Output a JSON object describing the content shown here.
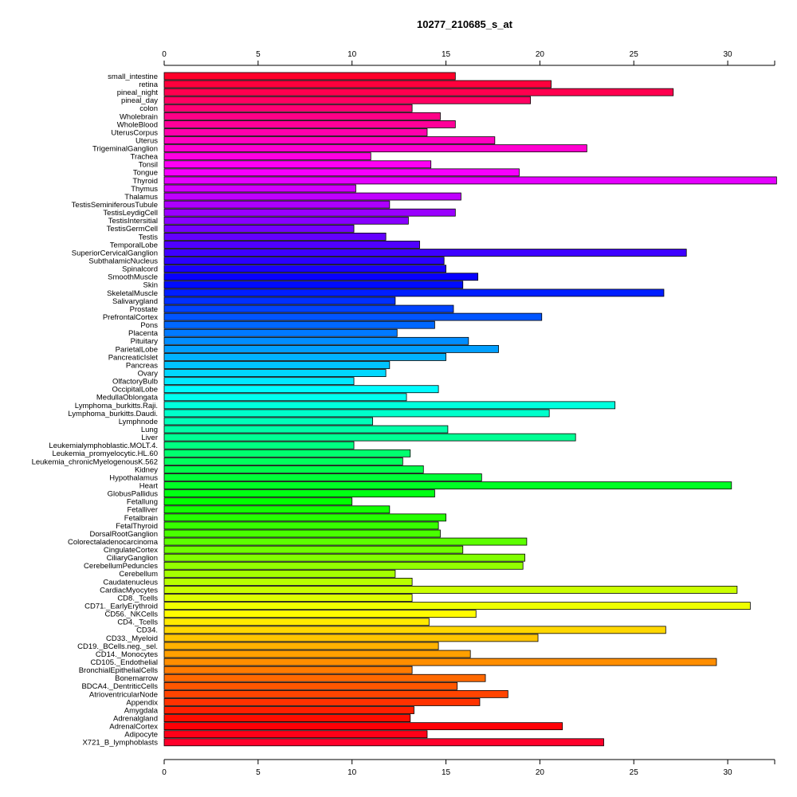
{
  "chart_data": {
    "type": "bar",
    "orientation": "horizontal",
    "title": "10277_210685_s_at",
    "xlim": [
      0,
      32.5
    ],
    "xticks": [
      0,
      5,
      10,
      15,
      20,
      25,
      30
    ],
    "grid": false,
    "categories": [
      "small_intestine",
      "retina",
      "pineal_night",
      "pineal_day",
      "colon",
      "Wholebrain",
      "WholeBlood",
      "UterusCorpus",
      "Uterus",
      "TrigeminalGanglion",
      "Trachea",
      "Tonsil",
      "Tongue",
      "Thyroid",
      "Thymus",
      "Thalamus",
      "TestisSeminiferousTubule",
      "TestisLeydigCell",
      "TestisIntersitial",
      "TestisGermCell",
      "Testis",
      "TemporalLobe",
      "SuperiorCervicalGanglion",
      "SubthalamicNucleus",
      "Spinalcord",
      "SmoothMuscle",
      "Skin",
      "SkeletalMuscle",
      "Salivarygland",
      "Prostate",
      "PrefrontalCortex",
      "Pons",
      "Placenta",
      "Pituitary",
      "ParietalLobe",
      "PancreaticIslet",
      "Pancreas",
      "Ovary",
      "OlfactoryBulb",
      "OccipitalLobe",
      "MedullaOblongata",
      "Lymphoma_burkitts.Raji.",
      "Lymphoma_burkitts.Daudi.",
      "Lymphnode",
      "Lung",
      "Liver",
      "Leukemialymphoblastic.MOLT.4.",
      "Leukemia_promyelocytic.HL.60",
      "Leukemia_chronicMyelogenousK.562",
      "Kidney",
      "Hypothalamus",
      "Heart",
      "GlobusPallidus",
      "Fetallung",
      "Fetalliver",
      "Fetalbrain",
      "FetalThyroid",
      "DorsalRootGanglion",
      "Colorectaladenocarcinoma",
      "CingulateCortex",
      "CiliaryGanglion",
      "CerebellumPeduncles",
      "Cerebellum",
      "Caudatenucleus",
      "CardiacMyocytes",
      "CD8._Tcells",
      "CD71._EarlyErythroid",
      "CD56._NKCells",
      "CD4._Tcells",
      "CD34.",
      "CD33._Myeloid",
      "CD19._BCells.neg._sel.",
      "CD14._Monocytes",
      "CD105._Endothelial",
      "BronchialEpithelialCells",
      "Bonemarrow",
      "BDCA4._DentriticCells",
      "AtrioventricularNode",
      "Appendix",
      "Amygdala",
      "Adrenalgland",
      "AdrenalCortex",
      "Adipocyte",
      "X721_B_lymphoblasts"
    ],
    "values": [
      15.5,
      20.6,
      27.1,
      19.5,
      13.2,
      14.7,
      15.5,
      14.0,
      17.6,
      22.5,
      11.0,
      14.2,
      18.9,
      32.6,
      10.2,
      15.8,
      12.0,
      15.5,
      13.0,
      10.1,
      11.8,
      13.6,
      27.8,
      14.9,
      15.0,
      16.7,
      15.9,
      26.6,
      12.3,
      15.4,
      20.1,
      14.4,
      12.4,
      16.2,
      17.8,
      15.0,
      12.0,
      11.8,
      10.1,
      14.6,
      12.9,
      24.0,
      20.5,
      11.1,
      15.1,
      21.9,
      10.1,
      13.1,
      12.7,
      13.8,
      16.9,
      30.2,
      14.4,
      10.0,
      12.0,
      15.0,
      14.6,
      14.7,
      19.3,
      15.9,
      19.2,
      19.1,
      12.3,
      13.2,
      30.5,
      13.2,
      31.2,
      16.6,
      14.1,
      26.7,
      19.9,
      14.6,
      16.3,
      29.4,
      13.2,
      17.1,
      15.6,
      18.3,
      16.8,
      13.3,
      13.1,
      21.2,
      14.0,
      23.4
    ],
    "colors": {
      "bar_outline": "#000000",
      "axis": "#000000",
      "hue_start": 350,
      "hue_end": 0,
      "hue_span": 360
    }
  }
}
